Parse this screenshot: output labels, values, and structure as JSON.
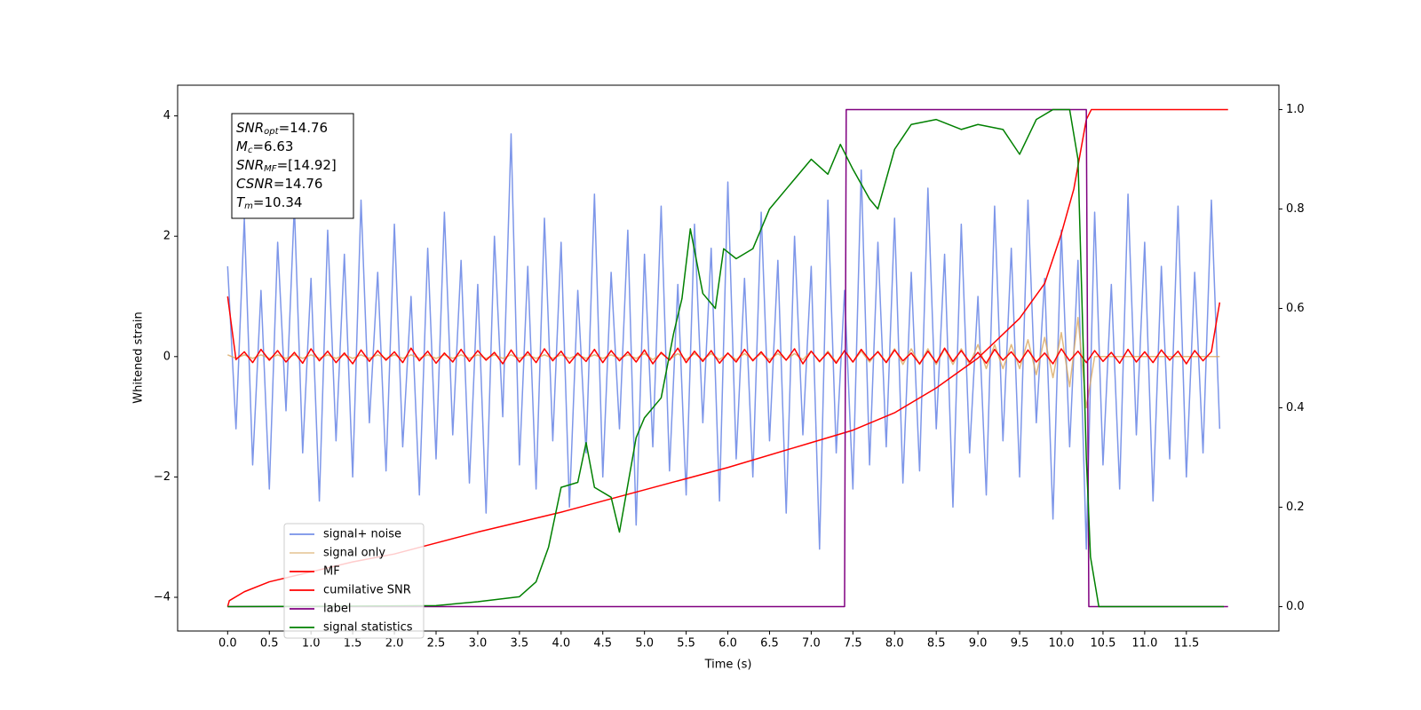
{
  "chart_data": {
    "type": "line",
    "xlabel": "Time (s)",
    "ylabel": "Whitened strain",
    "xlim": [
      -0.6,
      12.61
    ],
    "ylim": [
      -4.56,
      4.51
    ],
    "y2lim": [
      -0.049,
      1.049
    ],
    "xticks": [
      {
        "value": 0,
        "label": "0.0"
      },
      0.5,
      {
        "value": 1,
        "label": "1.0"
      },
      1.5,
      {
        "value": 2,
        "label": "2.0"
      },
      2.5,
      {
        "value": 3,
        "label": "3.0"
      },
      3.5,
      {
        "value": 4,
        "label": "4.0"
      },
      4.5,
      {
        "value": 5,
        "label": "5.0"
      },
      5.5,
      {
        "value": 6,
        "label": "6.0"
      },
      6.5,
      {
        "value": 7,
        "label": "7.0"
      },
      7.5,
      {
        "value": 8,
        "label": "8.0"
      },
      8.5,
      {
        "value": 9,
        "label": "9.0"
      },
      9.5,
      {
        "value": 10,
        "label": "10.0"
      },
      10.5,
      {
        "value": 11,
        "label": "11.0"
      },
      11.5
    ],
    "yticks": [
      {
        "value": -4,
        "label": "−4"
      },
      {
        "value": -2,
        "label": "−2"
      },
      0,
      2,
      4
    ],
    "y2ticks": [
      {
        "value": 0,
        "label": "0.0"
      },
      0.2,
      0.4,
      0.6,
      0.8,
      {
        "value": 1,
        "label": "1.0"
      }
    ],
    "legend": "lower left",
    "annotations": [
      {
        "symbol": "SNR",
        "subscript": "opt",
        "text": "=14.76"
      },
      {
        "symbol": "M",
        "subscript": "c",
        "text": "=6.63"
      },
      {
        "symbol": "SNR",
        "subscript": "MF",
        "text": "=[14.92]"
      },
      {
        "symbol": "CSNR",
        "text": "=14.76"
      },
      {
        "symbol": "T",
        "subscript": "m",
        "text": "=10.34"
      }
    ],
    "x": [
      0,
      0.1,
      0.2,
      0.3,
      0.4,
      0.5,
      0.6,
      0.7,
      0.8,
      0.9,
      1,
      1.1,
      1.2,
      1.3,
      1.4,
      1.5,
      1.6,
      1.7,
      1.8,
      1.9,
      2,
      2.1,
      2.2,
      2.3,
      2.4,
      2.5,
      2.6,
      2.7,
      2.8,
      2.9,
      3,
      3.1,
      3.2,
      3.3,
      3.4,
      3.5,
      3.6,
      3.7,
      3.8,
      3.9,
      4,
      4.1,
      4.2,
      4.3,
      4.4,
      4.5,
      4.6,
      4.7,
      4.8,
      4.9,
      5,
      5.1,
      5.2,
      5.3,
      5.4,
      5.5,
      5.6,
      5.7,
      5.8,
      5.9,
      6,
      6.1,
      6.2,
      6.3,
      6.4,
      6.5,
      6.6,
      6.7,
      6.8,
      6.9,
      7,
      7.1,
      7.2,
      7.3,
      7.4,
      7.5,
      7.6,
      7.7,
      7.8,
      7.9,
      8,
      8.1,
      8.2,
      8.3,
      8.4,
      8.5,
      8.6,
      8.7,
      8.8,
      8.9,
      9,
      9.1,
      9.2,
      9.3,
      9.4,
      9.5,
      9.6,
      9.7,
      9.8,
      9.9,
      10,
      10.1,
      10.2,
      10.3,
      10.4,
      10.5,
      10.6,
      10.7,
      10.8,
      10.9,
      11,
      11.1,
      11.2,
      11.3,
      11.4,
      11.5,
      11.6,
      11.7,
      11.8,
      11.9
    ],
    "series": [
      {
        "name": "signal+ noise",
        "color": "#7690e8",
        "values": [
          1.5,
          -1.2,
          2.3,
          -1.8,
          1.1,
          -2.2,
          1.9,
          -0.9,
          2.5,
          -1.6,
          1.3,
          -2.4,
          2.1,
          -1.4,
          1.7,
          -2.0,
          2.6,
          -1.1,
          1.4,
          -1.9,
          2.2,
          -1.5,
          1.0,
          -2.3,
          1.8,
          -1.7,
          2.4,
          -1.3,
          1.6,
          -2.1,
          1.2,
          -2.6,
          2.0,
          -1.0,
          3.7,
          -1.8,
          1.5,
          -2.2,
          2.3,
          -1.4,
          1.9,
          -2.5,
          1.1,
          -1.6,
          2.7,
          -2.0,
          1.4,
          -1.2,
          2.1,
          -2.8,
          1.7,
          -1.5,
          2.5,
          -1.9,
          1.2,
          -2.3,
          2.2,
          -1.1,
          1.8,
          -2.4,
          2.9,
          -1.7,
          1.3,
          -2.0,
          2.4,
          -1.4,
          1.6,
          -2.6,
          2.0,
          -1.3,
          1.5,
          -3.2,
          2.6,
          -1.6,
          1.1,
          -2.2,
          3.1,
          -1.8,
          1.9,
          -1.5,
          2.3,
          -2.1,
          1.4,
          -1.9,
          2.8,
          -1.2,
          1.7,
          -2.5,
          2.2,
          -1.6,
          1.0,
          -2.3,
          2.5,
          -1.4,
          1.8,
          -2.0,
          2.6,
          -1.1,
          1.3,
          -2.7,
          2.1,
          -1.5,
          1.6,
          -3.2,
          2.4,
          -1.8,
          1.2,
          -2.2,
          2.7,
          -1.3,
          1.9,
          -2.4,
          1.5,
          -1.7,
          2.5,
          -2.0,
          1.4,
          -1.6,
          2.6,
          -1.2
        ]
      },
      {
        "name": "signal only",
        "color": "#d9a760",
        "values": [
          0.03,
          -0.03,
          0.03,
          -0.03,
          0.03,
          -0.03,
          0.03,
          -0.03,
          0.03,
          -0.03,
          0.03,
          -0.03,
          0.03,
          -0.03,
          0.03,
          -0.03,
          0.03,
          -0.03,
          0.03,
          -0.03,
          0.03,
          -0.03,
          0.03,
          -0.03,
          0.03,
          -0.03,
          0.03,
          -0.03,
          0.03,
          -0.03,
          0.03,
          -0.03,
          0.03,
          -0.03,
          0.03,
          -0.03,
          0.03,
          -0.03,
          0.03,
          -0.03,
          0.03,
          -0.03,
          0.03,
          -0.03,
          0.03,
          -0.03,
          0.03,
          -0.03,
          0.03,
          -0.03,
          0.05,
          -0.05,
          0.05,
          -0.05,
          0.05,
          -0.05,
          0.05,
          -0.05,
          0.05,
          -0.05,
          0.05,
          -0.05,
          0.05,
          -0.05,
          0.05,
          -0.05,
          0.05,
          -0.05,
          0.05,
          -0.05,
          0.09,
          -0.09,
          0.09,
          -0.09,
          0.09,
          -0.09,
          0.09,
          -0.09,
          0.09,
          -0.09,
          0.13,
          -0.13,
          0.13,
          -0.13,
          0.13,
          -0.13,
          0.13,
          -0.13,
          0.13,
          -0.13,
          0.2,
          -0.2,
          0.2,
          -0.2,
          0.2,
          -0.2,
          0.28,
          -0.3,
          0.32,
          -0.35,
          0.4,
          -0.5,
          0.65,
          -0.85,
          0,
          0,
          0,
          0,
          0,
          0,
          0,
          0,
          0,
          0,
          0,
          0,
          0,
          0,
          0,
          0
        ]
      },
      {
        "name": "MF",
        "color": "#ff0000",
        "values": [
          1.0,
          -0.05,
          0.08,
          -0.1,
          0.12,
          -0.06,
          0.1,
          -0.09,
          0.07,
          -0.11,
          0.13,
          -0.07,
          0.09,
          -0.1,
          0.06,
          -0.12,
          0.11,
          -0.08,
          0.1,
          -0.06,
          0.08,
          -0.1,
          0.14,
          -0.07,
          0.09,
          -0.11,
          0.06,
          -0.09,
          0.12,
          -0.08,
          0.1,
          -0.06,
          0.07,
          -0.12,
          0.11,
          -0.09,
          0.08,
          -0.1,
          0.13,
          -0.07,
          0.09,
          -0.11,
          0.06,
          -0.08,
          0.12,
          -0.1,
          0.1,
          -0.07,
          0.08,
          -0.09,
          0.11,
          -0.12,
          0.07,
          -0.06,
          0.14,
          -0.1,
          0.09,
          -0.08,
          0.1,
          -0.11,
          0.06,
          -0.09,
          0.12,
          -0.07,
          0.08,
          -0.1,
          0.11,
          -0.06,
          0.13,
          -0.12,
          0.09,
          -0.08,
          0.07,
          -0.11,
          0.1,
          -0.09,
          0.12,
          -0.06,
          0.08,
          -0.1,
          0.11,
          -0.07,
          0.06,
          -0.12,
          0.09,
          -0.1,
          0.14,
          -0.08,
          0.1,
          -0.09,
          0.07,
          -0.11,
          0.12,
          -0.06,
          0.08,
          -0.1,
          0.11,
          -0.09,
          0.06,
          -0.12,
          0.13,
          -0.07,
          0.09,
          -0.1,
          0.1,
          -0.08,
          0.07,
          -0.11,
          0.12,
          -0.09,
          0.08,
          -0.1,
          0.11,
          -0.06,
          0.09,
          -0.12,
          0.1,
          -0.07,
          0.08,
          0.9
        ]
      },
      {
        "name": "cumilative SNR",
        "color": "#ff0000",
        "axis": "y2",
        "x": [
          0,
          0.02,
          0.2,
          0.5,
          1,
          1.5,
          2,
          3,
          4,
          5,
          6,
          7,
          7.5,
          8,
          8.5,
          9,
          9.5,
          9.8,
          10,
          10.15,
          10.3,
          10.36,
          11,
          12
        ],
        "values": [
          0,
          0.012,
          0.03,
          0.05,
          0.07,
          0.09,
          0.106,
          0.15,
          0.19,
          0.235,
          0.28,
          0.33,
          0.355,
          0.39,
          0.44,
          0.5,
          0.58,
          0.65,
          0.75,
          0.84,
          0.98,
          1.0,
          1.0,
          1.0
        ]
      },
      {
        "name": "label",
        "color": "#800080",
        "axis": "y2",
        "x": [
          0,
          7.4,
          7.42,
          10.3,
          10.33,
          12
        ],
        "values": [
          0,
          0,
          1,
          1,
          0,
          0
        ]
      },
      {
        "name": "signal statistics",
        "color": "#008000",
        "axis": "y2",
        "x": [
          0,
          2.5,
          3.0,
          3.5,
          3.7,
          3.85,
          4.0,
          4.2,
          4.3,
          4.4,
          4.6,
          4.7,
          4.9,
          5.0,
          5.2,
          5.35,
          5.45,
          5.55,
          5.7,
          5.85,
          5.95,
          6.1,
          6.3,
          6.5,
          6.8,
          7.0,
          7.2,
          7.35,
          7.5,
          7.7,
          7.8,
          8.0,
          8.2,
          8.5,
          8.8,
          9.0,
          9.3,
          9.5,
          9.7,
          9.9,
          10.1,
          10.2,
          10.3,
          10.35,
          10.45,
          11.95
        ],
        "values": [
          0,
          0.002,
          0.01,
          0.02,
          0.05,
          0.12,
          0.24,
          0.25,
          0.33,
          0.24,
          0.22,
          0.15,
          0.34,
          0.38,
          0.42,
          0.55,
          0.62,
          0.76,
          0.63,
          0.6,
          0.72,
          0.7,
          0.72,
          0.8,
          0.86,
          0.9,
          0.87,
          0.93,
          0.88,
          0.82,
          0.8,
          0.92,
          0.97,
          0.98,
          0.96,
          0.97,
          0.96,
          0.91,
          0.98,
          1.0,
          1.0,
          0.9,
          0.3,
          0.1,
          0.0,
          0.0
        ]
      }
    ]
  }
}
